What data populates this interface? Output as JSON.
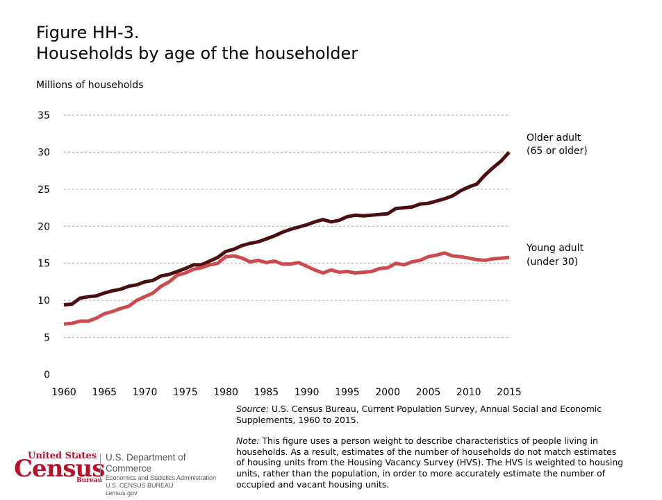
{
  "figure": {
    "title_line1": "Figure HH-3.",
    "title_line2": "Households by age of the householder",
    "ylabel": "Millions of households"
  },
  "notes": {
    "source_label": "Source:",
    "source_text": " U.S. Census Bureau, Current Population Survey, Annual Social and Economic Supplements, 1960 to 2015.",
    "note_label": "Note:",
    "note_text": " This figure uses a person weight to describe characteristics of people living in households. As a result, estimates of the number of households do not match estimates of housing units from the Housing Vacancy Survey (HVS). The HVS is weighted to housing units, rather than the population, in order to more accurately estimate the number of occupied and vacant housing units."
  },
  "logo": {
    "united_states": "United States",
    "census": "Census",
    "bureau": "Bureau",
    "dept": "U.S. Department of Commerce",
    "admin": "Economics and Statistics Administration",
    "bureau_name": "U.S. CENSUS BUREAU",
    "website": "census.gov"
  },
  "colors": {
    "older": "#4a1010",
    "young": "#cc4b4e",
    "grid": "#a8a8a8"
  },
  "chart_data": {
    "type": "line",
    "title": "Households by age of the householder",
    "ylabel": "Millions of households",
    "xlabel": "",
    "xlim": [
      1960,
      2015
    ],
    "ylim": [
      0,
      35
    ],
    "yticks": [
      0,
      5,
      10,
      15,
      20,
      25,
      30,
      35
    ],
    "xticks": [
      1960,
      1965,
      1970,
      1975,
      1980,
      1985,
      1990,
      1995,
      2000,
      2005,
      2010,
      2015
    ],
    "grid": "horizontal dashed",
    "x": [
      1960,
      1961,
      1962,
      1963,
      1964,
      1965,
      1966,
      1967,
      1968,
      1969,
      1970,
      1971,
      1972,
      1973,
      1974,
      1975,
      1976,
      1977,
      1978,
      1979,
      1980,
      1981,
      1982,
      1983,
      1984,
      1985,
      1986,
      1987,
      1988,
      1989,
      1990,
      1991,
      1992,
      1993,
      1994,
      1995,
      1996,
      1997,
      1998,
      1999,
      2000,
      2001,
      2002,
      2003,
      2004,
      2005,
      2006,
      2007,
      2008,
      2009,
      2010,
      2011,
      2012,
      2013,
      2014,
      2015
    ],
    "series": [
      {
        "name": "Older adult\n(65 or older)",
        "label_line1": "Older adult",
        "label_line2": "(65 or older)",
        "values": [
          9.4,
          9.5,
          10.3,
          10.5,
          10.6,
          11.0,
          11.3,
          11.5,
          11.9,
          12.1,
          12.5,
          12.7,
          13.3,
          13.5,
          13.9,
          14.3,
          14.8,
          14.8,
          15.3,
          15.8,
          16.6,
          16.9,
          17.4,
          17.7,
          17.9,
          18.3,
          18.7,
          19.2,
          19.6,
          19.9,
          20.2,
          20.6,
          20.9,
          20.6,
          20.8,
          21.3,
          21.5,
          21.4,
          21.5,
          21.6,
          21.7,
          22.4,
          22.5,
          22.6,
          23.0,
          23.1,
          23.4,
          23.7,
          24.1,
          24.8,
          25.3,
          25.7,
          26.9,
          27.9,
          28.8,
          30.0
        ]
      },
      {
        "name": "Young adult\n(under 30)",
        "label_line1": "Young adult",
        "label_line2": "(under 30)",
        "values": [
          6.8,
          6.9,
          7.2,
          7.2,
          7.6,
          8.2,
          8.5,
          8.9,
          9.2,
          10.0,
          10.5,
          11.0,
          11.9,
          12.5,
          13.4,
          13.7,
          14.2,
          14.4,
          14.8,
          15.0,
          15.9,
          16.0,
          15.7,
          15.2,
          15.4,
          15.1,
          15.3,
          14.9,
          14.9,
          15.1,
          14.6,
          14.1,
          13.7,
          14.1,
          13.8,
          13.9,
          13.7,
          13.8,
          13.9,
          14.3,
          14.4,
          15.0,
          14.8,
          15.2,
          15.4,
          15.9,
          16.1,
          16.4,
          16.0,
          15.9,
          15.7,
          15.5,
          15.4,
          15.6,
          15.7,
          15.8
        ]
      }
    ]
  }
}
